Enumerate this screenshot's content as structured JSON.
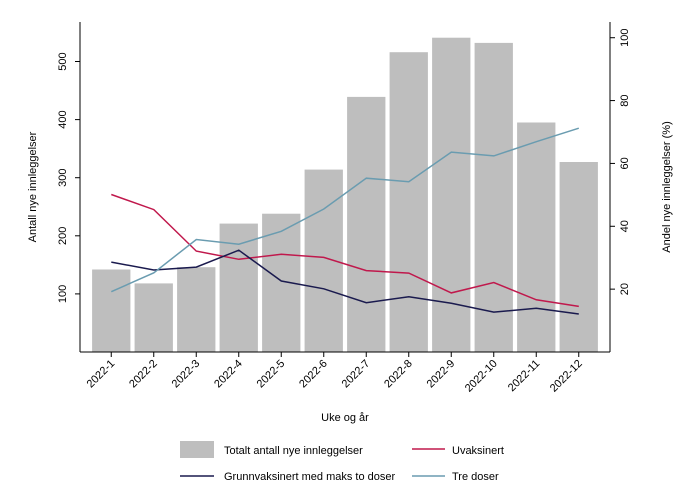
{
  "chart_data": {
    "type": "bar",
    "title": "",
    "xlabel": "Uke og år",
    "ylabel_left": "Antall nye innleggelser",
    "ylabel_right": "Andel nye innleggelser (%)",
    "categories": [
      "2022-1",
      "2022-2",
      "2022-3",
      "2022-4",
      "2022-5",
      "2022-6",
      "2022-7",
      "2022-8",
      "2022-9",
      "2022-10",
      "2022-11",
      "2022-12"
    ],
    "ylim_left": [
      0,
      568
    ],
    "yticks_left": [
      100,
      200,
      300,
      400,
      500
    ],
    "ylim_right": [
      0,
      105
    ],
    "yticks_right": [
      20,
      40,
      60,
      80,
      100
    ],
    "grid": false,
    "legend_position": "bottom",
    "bars": {
      "name": "Totalt antall nye innleggelser",
      "color": "#bebebe",
      "values": [
        142,
        118,
        146,
        221,
        238,
        314,
        439,
        516,
        541,
        532,
        395,
        327
      ]
    },
    "series": [
      {
        "name": "Uvaksinert",
        "axis": "right",
        "color": "#c0184c",
        "values": [
          50.1,
          45.3,
          32.1,
          29.5,
          31.1,
          30.1,
          25.9,
          25.1,
          18.8,
          22.1,
          16.6,
          14.5
        ]
      },
      {
        "name": "Grunnvaksinert med maks to doser",
        "axis": "right",
        "color": "#1a1a4e",
        "values": [
          28.6,
          26.1,
          27.0,
          32.4,
          22.6,
          20.1,
          15.7,
          17.6,
          15.5,
          12.7,
          13.9,
          12.1
        ]
      },
      {
        "name": "Tre doser",
        "axis": "right",
        "color": "#6a9cb0",
        "values": [
          19.2,
          25.2,
          35.8,
          34.3,
          38.4,
          45.5,
          55.3,
          54.2,
          63.6,
          62.4,
          66.9,
          71.2
        ]
      }
    ]
  }
}
